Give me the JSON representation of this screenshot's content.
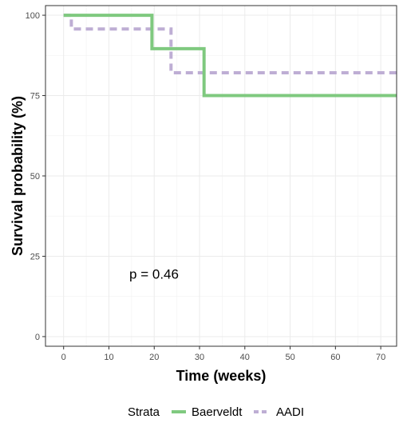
{
  "chart_data": {
    "type": "line",
    "step": true,
    "xlabel": "Time (weeks)",
    "ylabel": "Survival probability (%)",
    "xlim": [
      -4,
      73.5
    ],
    "ylim": [
      -3,
      103
    ],
    "xticks": [
      0,
      10,
      20,
      30,
      40,
      50,
      60,
      70
    ],
    "yticks": [
      0,
      25,
      50,
      75,
      100
    ],
    "grid": true,
    "annotation": "p = 0.46",
    "annotation_position": {
      "x": 14.5,
      "y": 19.5
    },
    "legend": {
      "title": "Strata",
      "placement": "bottom"
    },
    "series": [
      {
        "name": "Baerveldt",
        "color": "#7fc97f",
        "dash": "solid",
        "steps": [
          [
            0,
            100
          ],
          [
            19.5,
            100
          ],
          [
            19.5,
            89.6
          ],
          [
            31,
            89.6
          ],
          [
            31,
            75
          ],
          [
            73.5,
            75
          ]
        ]
      },
      {
        "name": "AADI",
        "color": "#beaed4",
        "dash": "dashed",
        "steps": [
          [
            0,
            100
          ],
          [
            1.7,
            100
          ],
          [
            1.7,
            95.7
          ],
          [
            23.7,
            95.7
          ],
          [
            23.7,
            82.1
          ],
          [
            73.5,
            82.1
          ]
        ]
      }
    ]
  }
}
